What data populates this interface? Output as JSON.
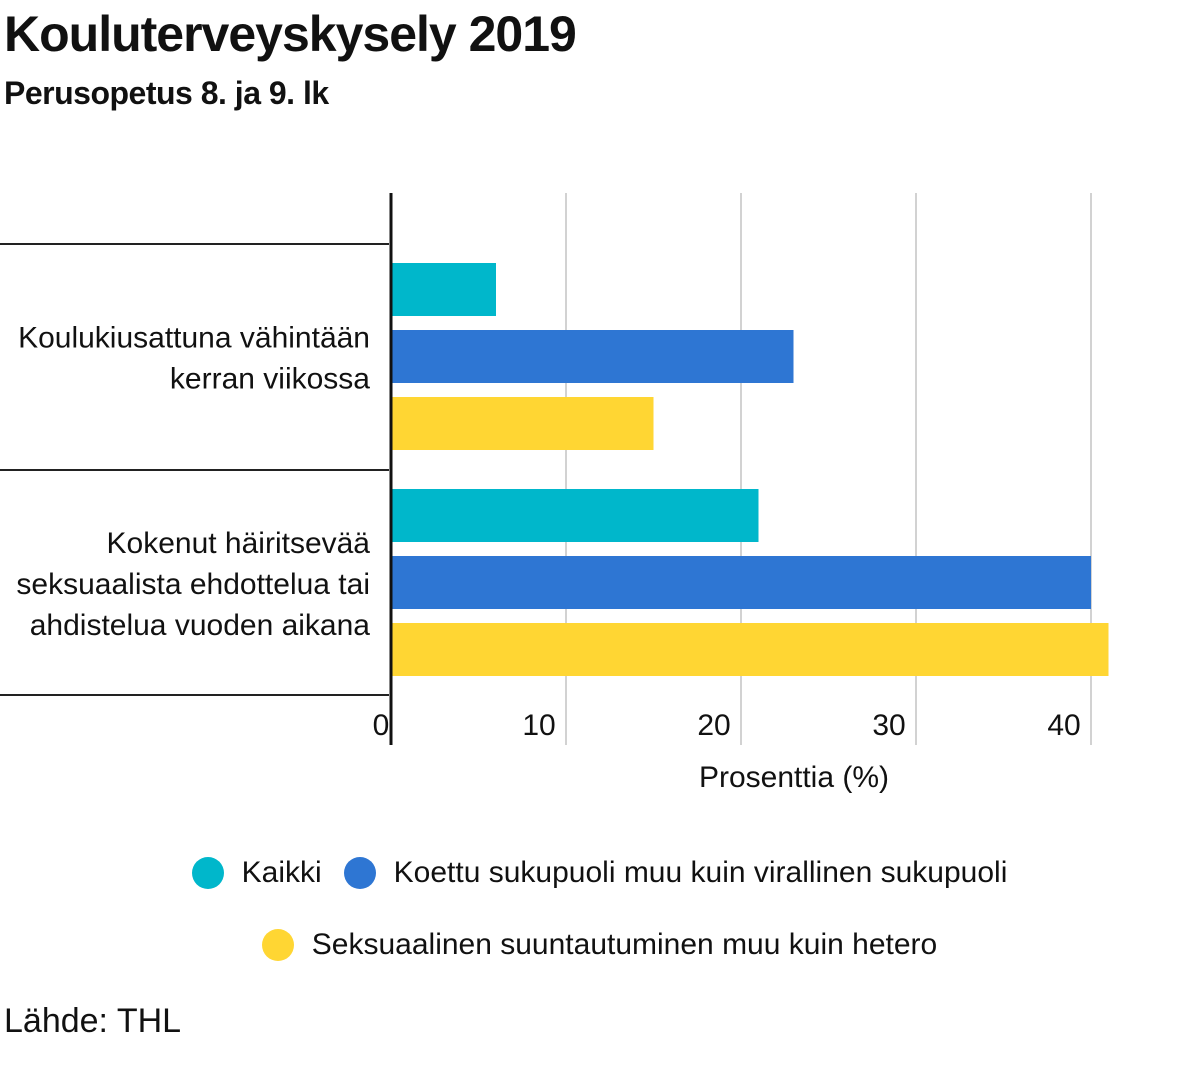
{
  "title": "Kouluterveyskysely 2019",
  "subtitle": "Perusopetus 8. ja 9. lk",
  "source": "Lähde: THL",
  "chart_data": {
    "type": "bar",
    "orientation": "horizontal",
    "xlabel": "Prosenttia (%)",
    "xlim": [
      0,
      41
    ],
    "xticks": [
      0,
      10,
      20,
      30,
      40
    ],
    "grid": true,
    "legend_position": "bottom",
    "categories": [
      [
        "Koulukiusattuna vähintään",
        "kerran viikossa"
      ],
      [
        "Kokenut häiritsevää",
        "seksuaalista ehdottelua tai",
        "ahdistelua vuoden aikana"
      ]
    ],
    "series": [
      {
        "name": "Kaikki",
        "color": "#00B7CB",
        "values": [
          6,
          21
        ]
      },
      {
        "name": "Koettu sukupuoli muu kuin virallinen sukupuoli",
        "color": "#2E76D3",
        "values": [
          23,
          40
        ]
      },
      {
        "name": "Seksuaalinen suuntautuminen muu kuin hetero",
        "color": "#FFD633",
        "values": [
          15,
          41
        ]
      }
    ]
  }
}
